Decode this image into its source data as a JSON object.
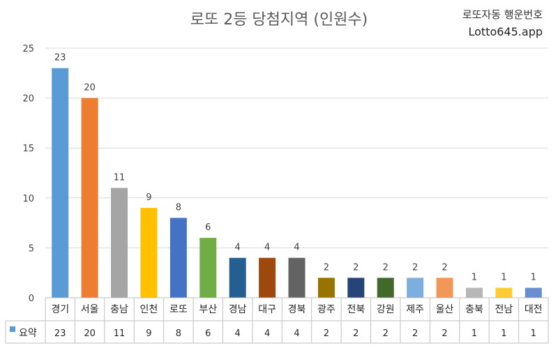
{
  "header": {
    "title": "로또 2등 당첨지역 (인원수)",
    "brand_line1": "로또자동 행운번호",
    "brand_line2": "Lotto645.app"
  },
  "chart_data": {
    "type": "bar",
    "title": "로또 2등 당첨지역 (인원수)",
    "categories": [
      "경기",
      "서울",
      "충남",
      "인천",
      "로또",
      "부산",
      "경남",
      "대구",
      "경북",
      "광주",
      "전북",
      "강원",
      "제주",
      "울산",
      "충북",
      "전남",
      "대전"
    ],
    "series": [
      {
        "name": "요약",
        "values": [
          23,
          20,
          11,
          9,
          8,
          6,
          4,
          4,
          4,
          2,
          2,
          2,
          2,
          2,
          1,
          1,
          1
        ]
      }
    ],
    "bar_colors": [
      "#5B9BD5",
      "#ED7D31",
      "#A5A5A5",
      "#FFC000",
      "#4472C4",
      "#70AD47",
      "#255E91",
      "#9E480E",
      "#636363",
      "#997300",
      "#264478",
      "#43682B",
      "#7CAFDD",
      "#F1975A",
      "#B7B7B7",
      "#FFCD33",
      "#698ED0"
    ],
    "legend_color": "#5B9BD5",
    "ylim": [
      0,
      25
    ],
    "yticks": [
      0,
      5,
      10,
      15,
      20,
      25
    ],
    "grid": true,
    "legend": "data-table-left",
    "data_labels": true,
    "data_table": true
  }
}
